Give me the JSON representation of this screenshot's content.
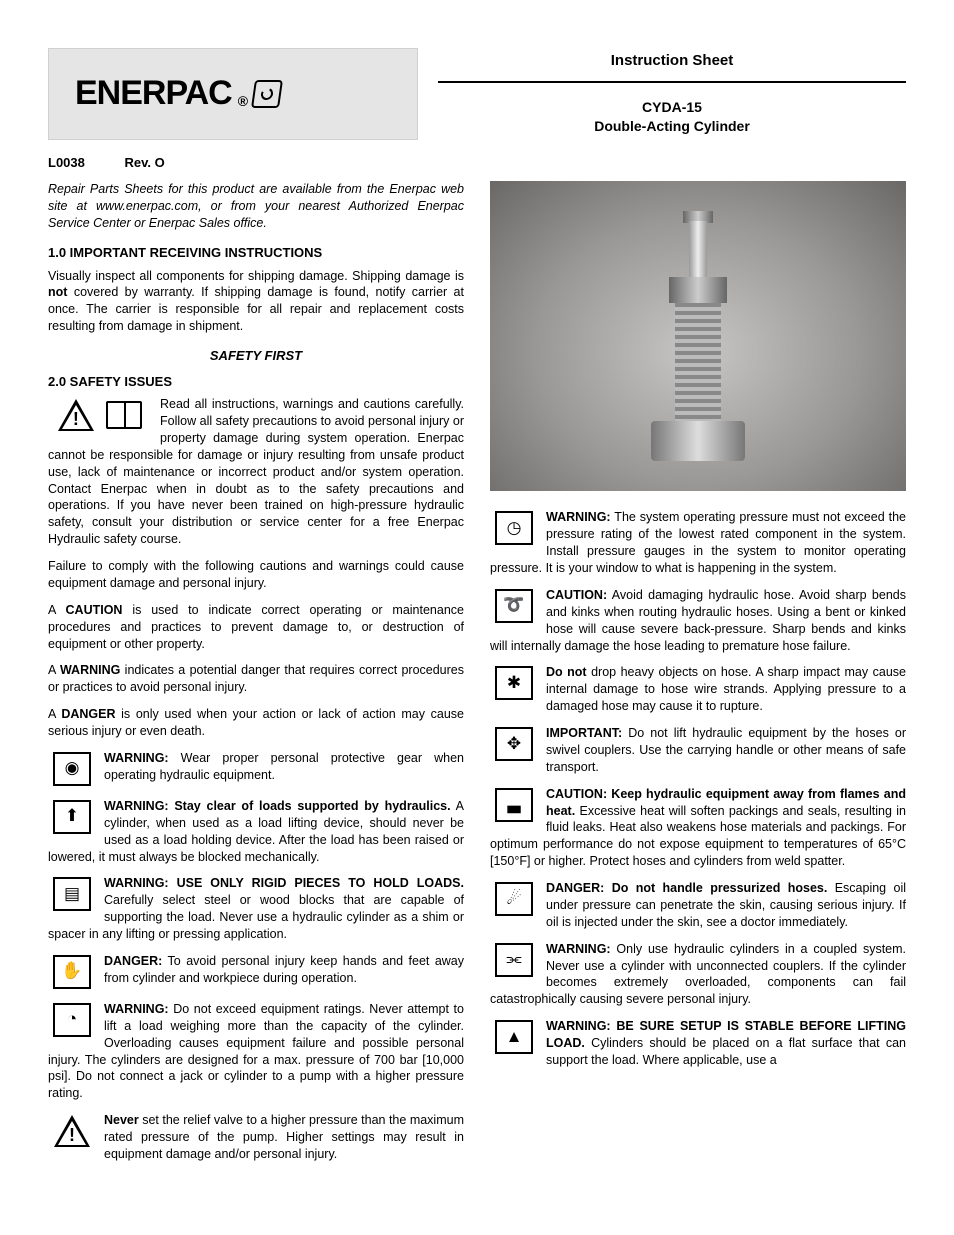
{
  "header": {
    "brand": "ENERPAC",
    "instruction_sheet": "Instruction Sheet",
    "product_line1": "CYDA-15",
    "product_line2": "Double-Acting Cylinder",
    "docid": "L0038",
    "rev": "Rev. O"
  },
  "repair_note": "Repair Parts Sheets for this product are available from the Enerpac web site at www.enerpac.com, or from your nearest Authorized Enerpac Service Center or Enerpac Sales office.",
  "sec1": {
    "title": "1.0  IMPORTANT RECEIVING INSTRUCTIONS",
    "p1_a": "Visually inspect all components for shipping damage. Shipping damage is ",
    "p1_b": "not",
    "p1_c": " covered by warranty. If shipping damage is found, notify carrier at once. The carrier is responsible for all repair and replacement costs resulting from damage in shipment."
  },
  "safety_first": "SAFETY FIRST",
  "sec2": {
    "title": "2.0  SAFETY ISSUES",
    "intro": "Read all instructions, warnings and cautions carefully. Follow all safety precautions to avoid personal injury or property damage during system operation. Enerpac cannot be responsible for damage or injury resulting from unsafe product use, lack of maintenance or incorrect product and/or system operation. Contact Enerpac when in doubt as to the safety precautions and operations. If you have never been trained on high-pressure hydraulic safety, consult your distribution or service center for a free Enerpac Hydraulic safety course.",
    "p2": "Failure to comply with the following cautions and warnings could cause equipment damage and personal injury.",
    "p3_a": "A ",
    "p3_b": "CAUTION",
    "p3_c": " is used to indicate correct operating or maintenance procedures and practices to prevent damage to, or destruction of equipment or other property.",
    "p4_a": "A ",
    "p4_b": "WARNING",
    "p4_c": " indicates a potential danger that requires correct procedures or practices to avoid personal injury.",
    "p5_a": "A ",
    "p5_b": "DANGER",
    "p5_c": " is only used when your action or lack of action may cause serious injury or even death."
  },
  "warnings_left": [
    {
      "icon": "goggles",
      "bold": "WARNING:",
      "text": " Wear proper personal protective gear when operating hydraulic equipment."
    },
    {
      "icon": "load",
      "bold": "WARNING: Stay clear of loads supported by hydraulics.",
      "text": " A cylinder, when used as a load lifting device, should never be used as a load holding device. After the load has been raised or lowered, it must always be blocked mechanically."
    },
    {
      "icon": "blocks",
      "bold": "WARNING: USE ONLY RIGID PIECES TO HOLD LOADS.",
      "text": " Carefully select steel or wood blocks that are capable of supporting the load. Never use a hydraulic cylinder as a shim or spacer in any lifting or pressing application."
    },
    {
      "icon": "hands",
      "bold": "DANGER:",
      "text": " To avoid personal injury keep hands and feet away from cylinder and workpiece during operation."
    },
    {
      "icon": "gauge",
      "bold": "WARNING:",
      "text": " Do not exceed equipment ratings. Never attempt to lift a load weighing more than the capacity of the cylinder. Overloading causes equipment failure and possible personal injury. The cylinders are designed for a max. pressure of 700 bar [10,000 psi]. Do not connect a jack or cylinder to a pump with a higher pressure rating."
    },
    {
      "icon": "tri",
      "bold": "Never",
      "text": " set the relief valve to a higher pressure than the maximum rated pressure of the pump. Higher settings may result in equipment damage and/or personal injury."
    }
  ],
  "warnings_right": [
    {
      "icon": "gauge2",
      "bold": "WARNING:",
      "text": " The system operating pressure must not exceed the pressure rating of the lowest rated component in the system. Install pressure gauges in the system to monitor operating pressure. It is your window to what is happening in the system."
    },
    {
      "icon": "hose",
      "bold": "CAUTION:",
      "text": " Avoid damaging hydraulic hose. Avoid sharp bends and kinks when routing hydraulic hoses. Using a bent or kinked hose will cause severe back-pressure. Sharp bends and kinks will internally damage the hose leading to premature hose failure."
    },
    {
      "icon": "impact",
      "bold": "Do not",
      "text": " drop heavy objects on hose. A sharp impact may cause internal damage to hose wire strands. Applying pressure to a damaged hose may cause it to rupture."
    },
    {
      "icon": "lift",
      "bold": "IMPORTANT:",
      "text": " Do not lift hydraulic equipment by the hoses or swivel couplers. Use the carrying handle or other means of safe transport."
    },
    {
      "icon": "flame",
      "bold": "CAUTION: Keep hydraulic equipment away from flames and heat.",
      "text": " Excessive heat will soften packings and seals, resulting in fluid leaks. Heat also weakens hose materials and packings. For optimum performance do not expose equipment to temperatures of 65°C [150°F] or higher. Protect hoses and cylinders from weld spatter."
    },
    {
      "icon": "skin",
      "bold": "DANGER: Do not handle pressurized hoses.",
      "text": " Escaping oil under pressure can penetrate the skin, causing serious injury. If oil is injected under the skin, see a doctor immediately."
    },
    {
      "icon": "couple",
      "bold": "WARNING:",
      "text": " Only use hydraulic cylinders in a coupled system. Never use a cylinder with unconnected couplers. If the cylinder becomes extremely overloaded, components can fail catastrophically causing severe personal injury."
    },
    {
      "icon": "stable",
      "bold": "WARNING: BE SURE SETUP IS STABLE BEFORE LIFTING LOAD.",
      "text": " Cylinders should be placed on a flat surface that can support the load. Where applicable, use a"
    }
  ]
}
